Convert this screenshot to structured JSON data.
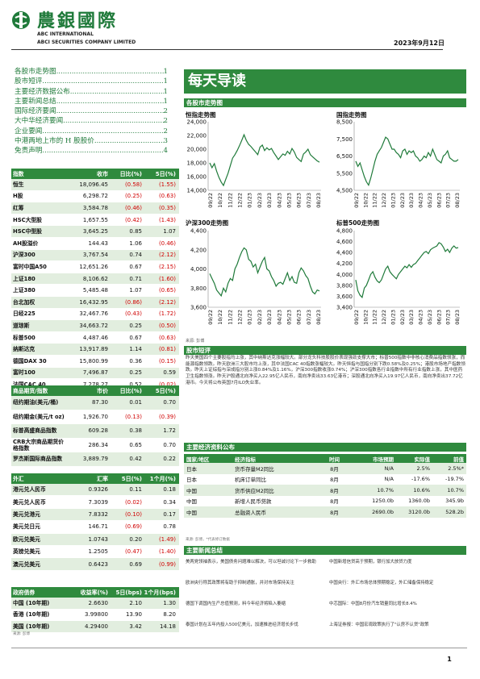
{
  "header": {
    "brand_cn": "農銀國際",
    "brand_en1": "ABC INTERNATIONAL",
    "brand_en2": "ABCI SECURITIES COMPANY LIMITED",
    "date": "2023年9月12日"
  },
  "toc": [
    {
      "label": "各股市走势图",
      "page": "1"
    },
    {
      "label": "股市短评",
      "page": "1"
    },
    {
      "label": "主要经济数据公布",
      "page": "1"
    },
    {
      "label": "主要新闻总结",
      "page": "1"
    },
    {
      "label": "国际经济要闻",
      "page": "2"
    },
    {
      "label": "大中华经济要闻",
      "page": "2"
    },
    {
      "label": "企业要闻",
      "page": "2"
    },
    {
      "label": "中港两地上市的 H 股股价",
      "page": "3"
    },
    {
      "label": "免责声明",
      "page": "4"
    }
  ],
  "index_table": {
    "headers": [
      "指数",
      "收市",
      "日比(%)",
      "5日(%)"
    ],
    "rows": [
      {
        "name": "恒生",
        "close": "18,096.45",
        "d1": "(0.58)",
        "d5": "(1.55)",
        "d1neg": true,
        "d5neg": true
      },
      {
        "name": "H股",
        "close": "6,298.72",
        "d1": "(0.25)",
        "d5": "(0.63)",
        "d1neg": true,
        "d5neg": true
      },
      {
        "name": "红筹",
        "close": "3,584.78",
        "d1": "(0.46)",
        "d5": "(0.35)",
        "d1neg": true,
        "d5neg": true
      },
      {
        "name": "HSC大型股",
        "close": "1,657.55",
        "d1": "(0.42)",
        "d5": "(1.43)",
        "d1neg": true,
        "d5neg": true
      },
      {
        "name": "HSC中型股",
        "close": "3,645.25",
        "d1": "0.85",
        "d5": "1.07",
        "d1neg": false,
        "d5neg": false
      },
      {
        "name": "AH股溢价",
        "close": "144.43",
        "d1": "1.06",
        "d5": "(0.46)",
        "d1neg": false,
        "d5neg": true
      },
      {
        "name": "沪深300",
        "close": "3,767.54",
        "d1": "0.74",
        "d5": "(2.12)",
        "d1neg": false,
        "d5neg": true
      },
      {
        "name": "富时中国A50",
        "close": "12,651.26",
        "d1": "0.67",
        "d5": "(2.15)",
        "d1neg": false,
        "d5neg": true
      },
      {
        "name": "上证180",
        "close": "8,106.62",
        "d1": "0.71",
        "d5": "(1.60)",
        "d1neg": false,
        "d5neg": true
      },
      {
        "name": "上证380",
        "close": "5,485.48",
        "d1": "1.07",
        "d5": "(0.65)",
        "d1neg": false,
        "d5neg": true
      },
      {
        "name": "台北加权",
        "close": "16,432.95",
        "d1": "(0.86)",
        "d5": "(2.12)",
        "d1neg": true,
        "d5neg": true
      },
      {
        "name": "日经225",
        "close": "32,467.76",
        "d1": "(0.43)",
        "d5": "(1.72)",
        "d1neg": true,
        "d5neg": true
      },
      {
        "name": "道琼斯",
        "close": "34,663.72",
        "d1": "0.25",
        "d5": "(0.50)",
        "d1neg": false,
        "d5neg": true
      },
      {
        "name": "标普500",
        "close": "4,487.46",
        "d1": "0.67",
        "d5": "(0.63)",
        "d1neg": false,
        "d5neg": true
      },
      {
        "name": "纳斯达克",
        "close": "13,917.89",
        "d1": "1.14",
        "d5": "(0.81)",
        "d1neg": false,
        "d5neg": true
      },
      {
        "name": "德国DAX 30",
        "close": "15,800.99",
        "d1": "0.36",
        "d5": "(0.15)",
        "d1neg": false,
        "d5neg": true
      },
      {
        "name": "富时100",
        "close": "7,496.87",
        "d1": "0.25",
        "d5": "0.59",
        "d1neg": false,
        "d5neg": false
      },
      {
        "name": "法国CAC 40",
        "close": "7,278.27",
        "d1": "0.52",
        "d5": "(0.02)",
        "d1neg": false,
        "d5neg": true
      }
    ]
  },
  "commodity_table": {
    "headers": [
      "商品期货/指数",
      "市价",
      "日比(%)",
      "5日(%)"
    ],
    "rows": [
      {
        "name": "纽约期油(美元/桶)",
        "close": "87.30",
        "d1": "0.01",
        "d5": "0.70",
        "d1neg": false,
        "d5neg": false
      },
      {
        "name": "纽约期金(美元/t oz)",
        "close": "1,926.70",
        "d1": "(0.13)",
        "d5": "(0.39)",
        "d1neg": true,
        "d5neg": true
      },
      {
        "name": "标普高盛商品指数",
        "close": "609.28",
        "d1": "0.38",
        "d5": "1.72",
        "d1neg": false,
        "d5neg": false
      },
      {
        "name": "CRB大宗商品期货价格指数",
        "close": "286.34",
        "d1": "0.65",
        "d5": "0.70",
        "d1neg": false,
        "d5neg": false
      },
      {
        "name": "罗杰斯国际商品指数",
        "close": "3,889.79",
        "d1": "0.42",
        "d5": "0.22",
        "d1neg": false,
        "d5neg": false
      }
    ]
  },
  "fx_table": {
    "headers": [
      "外汇",
      "汇率",
      "5日(%)",
      "1个月(%)"
    ],
    "rows": [
      {
        "name": "港元兑人民币",
        "close": "0.9326",
        "d1": "0.11",
        "d5": "0.18",
        "d1neg": false,
        "d5neg": false
      },
      {
        "name": "美元兑人民币",
        "close": "7.3039",
        "d1": "(0.02)",
        "d5": "0.34",
        "d1neg": true,
        "d5neg": false
      },
      {
        "name": "美元兑港元",
        "close": "7.8332",
        "d1": "(0.10)",
        "d5": "0.17",
        "d1neg": true,
        "d5neg": false
      },
      {
        "name": "美元兑日元",
        "close": "146.71",
        "d1": "(0.69)",
        "d5": "0.78",
        "d1neg": true,
        "d5neg": false
      },
      {
        "name": "欧元兑美元",
        "close": "1.0743",
        "d1": "0.20",
        "d5": "(1.49)",
        "d1neg": false,
        "d5neg": true
      },
      {
        "name": "英镑兑美元",
        "close": "1.2505",
        "d1": "(0.47)",
        "d5": "(1.40)",
        "d1neg": true,
        "d5neg": true
      },
      {
        "name": "澳元兑美元",
        "close": "0.6423",
        "d1": "0.69",
        "d5": "(0.99)",
        "d1neg": false,
        "d5neg": true
      }
    ]
  },
  "bond_table": {
    "headers": [
      "政府债券",
      "收益率(%)",
      "5日(bps)",
      "1个月(bps)"
    ],
    "rows": [
      {
        "name": "中国 (10年期)",
        "close": "2.6630",
        "d1": "2.10",
        "d5": "1.30"
      },
      {
        "name": "香港 (10年期)",
        "close": "3.99800",
        "d1": "13.90",
        "d5": "8.20"
      },
      {
        "name": "美国 (10年期)",
        "close": "4.29400",
        "d1": "3.42",
        "d5": "14.18"
      }
    ],
    "source": "来源: 彭博"
  },
  "banner_title": "每天导读",
  "charts_section": {
    "title": "各股市走势图",
    "source": "来源: 彭博",
    "x_ticks": [
      "09/22",
      "10/22",
      "11/22",
      "12/22",
      "01/23",
      "02/23",
      "03/23",
      "04/23",
      "05/23",
      "06/23",
      "07/23",
      "08/23"
    ],
    "charts": [
      {
        "title": "恒指走势图",
        "ticks": [
          "24,000",
          "22,000",
          "20,000",
          "18,000",
          "16,000",
          "14,000"
        ],
        "tickvals": [
          24000,
          22000,
          20000,
          18000,
          16000,
          14000
        ],
        "ylim": [
          14000,
          24000
        ],
        "values": [
          18000,
          17300,
          17900,
          16800,
          15900,
          15200,
          14700,
          15600,
          16500,
          17600,
          18700,
          19200,
          19800,
          20500,
          21300,
          22100,
          21300,
          20700,
          20400,
          20000,
          19600,
          19200,
          20300,
          20600,
          19800,
          20200,
          19900,
          20100,
          19500,
          19000,
          18500,
          18900,
          19300,
          19100,
          19700,
          19300,
          20100,
          19600,
          18800,
          18500,
          18200,
          19300,
          19600,
          20000,
          19200,
          18900,
          18600,
          18300,
          18100
        ]
      },
      {
        "title": "国指走势图",
        "ticks": [
          "8,500",
          "7,500",
          "6,500",
          "5,500",
          "4,500"
        ],
        "tickvals": [
          8500,
          7500,
          6500,
          5500,
          4500
        ],
        "ylim": [
          4500,
          8500
        ],
        "values": [
          6200,
          5900,
          6100,
          5700,
          5300,
          5000,
          4800,
          5200,
          5700,
          6200,
          6600,
          6800,
          7000,
          7300,
          7600,
          7500,
          7200,
          6900,
          6900,
          6700,
          6600,
          6400,
          6800,
          6900,
          6600,
          6800,
          6700,
          6800,
          6500,
          6400,
          6200,
          6300,
          6500,
          6400,
          6700,
          6500,
          6900,
          6600,
          6300,
          6200,
          6100,
          6500,
          6600,
          6800,
          6400,
          6300,
          6200,
          6200,
          6300
        ]
      },
      {
        "title": "沪深300走势图",
        "ticks": [
          "4,400",
          "4,200",
          "4,000",
          "3,800",
          "3,600"
        ],
        "tickvals": [
          4400,
          4200,
          4000,
          3800,
          3600
        ],
        "ylim": [
          3600,
          4400
        ],
        "values": [
          3950,
          3900,
          3850,
          3780,
          3750,
          3720,
          3800,
          3760,
          3850,
          3900,
          3880,
          4000,
          4050,
          4120,
          4180,
          4220,
          4200,
          4100,
          4080,
          4020,
          4050,
          3960,
          4020,
          4080,
          4120,
          4000,
          3980,
          3920,
          3880,
          3820,
          3850,
          3860,
          3840,
          3900,
          3960,
          3880,
          3920,
          3860,
          3850,
          3960,
          4010,
          3980,
          3930,
          3900,
          3820,
          3760,
          3740,
          3780,
          3770
        ]
      },
      {
        "title": "标普500走势图",
        "ticks": [
          "4,800",
          "4,600",
          "4,400",
          "4,200",
          "4,000",
          "3,800",
          "3,600",
          "3,400"
        ],
        "tickvals": [
          4800,
          4600,
          4400,
          4200,
          4000,
          3800,
          3600,
          3400
        ],
        "ylim": [
          3400,
          4800
        ],
        "values": [
          3900,
          3700,
          3620,
          3580,
          3750,
          3800,
          3900,
          4000,
          4050,
          3950,
          3880,
          3850,
          3900,
          4000,
          4100,
          4150,
          4050,
          4000,
          3960,
          3920,
          4000,
          4050,
          4100,
          4150,
          4120,
          4180,
          4130,
          4180,
          4200,
          4250,
          4300,
          4350,
          4400,
          4420,
          4380,
          4450,
          4480,
          4500,
          4520,
          4580,
          4560,
          4500,
          4420,
          4460,
          4400,
          4480,
          4520,
          4480,
          4490
        ]
      }
    ]
  },
  "commentary": {
    "title": "股市短评",
    "text": "昨天美国四个主要股指均上涨，其中纳斯达克涨幅较大。部分龙头科技股股价表现强劲支撑大市；标普500指数中非核心消费品指数领涨，而能源指数领跌。昨天欧洲三大股市均上涨，其中法国CAC 40指数涨幅较大。昨天恒指与国指分别下跌0.58%及0.25%；港股市场地产指数领跌。昨天上证综指与深成指分别上涨0.84%及1.16%，沪深300指数收涨0.74%；沪深300指数各行业指数中所有行业指数上涨，其中医药卫生指数领涨。昨天沪股通北向净买入22.95亿人民币，南向净卖出33.63亿港币；深股通北向净买入19.97亿人民币，南向净卖出37.72亿港币。今天将公布英国7月ILO失业率。"
  },
  "economic_table": {
    "title": "主要经济资料公布",
    "headers": [
      "国家/地区",
      "经济指标",
      "时间",
      "市场预期",
      "实际值",
      "前值"
    ],
    "rows": [
      {
        "country": "日本",
        "indicator": "货币存量M2同比",
        "time": "8月",
        "forecast": "N/A",
        "actual": "2.5%",
        "prior": "2.5%*"
      },
      {
        "country": "日本",
        "indicator": "机床订单同比",
        "time": "8月",
        "forecast": "N/A",
        "actual": "-17.6%",
        "prior": "-19.7%"
      },
      {
        "country": "中国",
        "indicator": "货币供应M2同比",
        "time": "8月",
        "forecast": "10.7%",
        "actual": "10.6%",
        "prior": "10.7%"
      },
      {
        "country": "中国",
        "indicator": "新增人民币贷款",
        "time": "8月",
        "forecast": "1250.0b",
        "actual": "1360.0b",
        "prior": "345.9b"
      },
      {
        "country": "中国",
        "indicator": "总融资人民币",
        "time": "8月",
        "forecast": "2690.0b",
        "actual": "3120.0b",
        "prior": "528.2b"
      }
    ],
    "source": "来源: 彭博，*代表修订数据"
  },
  "news": {
    "title": "主要新闻总结",
    "left": [
      "美两党领袖表示，美国债务问题难以解决，可以坦诚讨论下一步救助",
      "欧洲央行称其政策将有助于抑制通胀，并对市场保持关注",
      "德国下调国内生产总值预测，料今年经济将陷入萎缩",
      "泰国计划在五年内投入500亿美元，加速推进经济增长步伐"
    ],
    "right": [
      "中国新增信贷高于预期，银行加大放贷力度",
      "中国央行：外汇市场总体预期稳定，外汇储备保持稳定",
      "中芯国际：中国8月份汽车销量同比增长8.4%",
      "上海证券报：中国宏观政策执行了\"认房不认贷\"政策"
    ]
  },
  "page_number": "1"
}
